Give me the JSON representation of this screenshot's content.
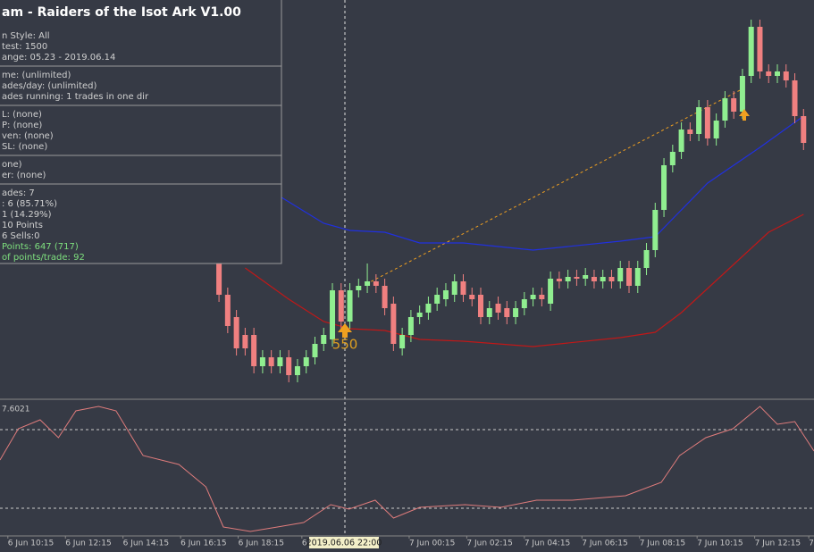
{
  "panel": {
    "title": "am - Raiders of the Isot Ark V1.00",
    "sections": [
      [
        "n Style:  All",
        " test: 1500",
        "ange: 05.23 - 2019.06.14"
      ],
      [
        "me: (unlimited)",
        "ades/day: (unlimited)",
        "ades running: 1 trades in one dir"
      ],
      [
        "L: (none)",
        "P: (none)",
        "ven: (none)",
        "SL: (none)"
      ],
      [
        "one)",
        "er: (none)"
      ],
      [
        "ades: 7",
        ": 6  (85.71%)",
        "1  (14.29%)",
        "10 Points",
        "6 Sells:0"
      ]
    ],
    "results": [
      "Points: 647 (717)",
      "of points/trade: 92"
    ]
  },
  "crosshair_label": "2019.06.06 22:00",
  "chart_data": [
    {
      "type": "candlestick",
      "annotation": "550",
      "up_color": "#90ee90",
      "down_color": "#f08080",
      "xlim": [
        -25.1,
        68.2
      ],
      "ylim": [
        0,
        450
      ],
      "xticks": [
        {
          "value": -24.2,
          "label": "6 Jun 10:15"
        },
        {
          "value": -17.6,
          "label": "6 Jun 12:15"
        },
        {
          "value": -11,
          "label": "6 Jun 14:15"
        },
        {
          "value": -4.4,
          "label": "6 Jun 16:15"
        },
        {
          "value": 2.2,
          "label": "6 Jun 18:15"
        },
        {
          "value": 9.5,
          "label": "6 J"
        },
        {
          "value": 21.8,
          "label": "7 Jun 00:15"
        },
        {
          "value": 28.4,
          "label": "7 Jun 02:15"
        },
        {
          "value": 35,
          "label": "7 Jun 04:15"
        },
        {
          "value": 41.6,
          "label": "7 Jun 06:15"
        },
        {
          "value": 48.2,
          "label": "7 Jun 08:15"
        },
        {
          "value": 54.8,
          "label": "7 Jun 10:15"
        },
        {
          "value": 61.4,
          "label": "7 Jun 12:15"
        },
        {
          "value": 67.6,
          "label": "7 Ju"
        }
      ],
      "open": [
        160,
        120,
        95,
        75,
        75,
        40,
        50,
        40,
        50,
        30,
        40,
        50,
        65,
        70,
        125,
        90,
        125,
        130,
        135,
        130,
        110,
        60,
        75,
        95,
        100,
        110,
        115,
        120,
        135,
        120,
        120,
        95,
        110,
        105,
        95,
        105,
        115,
        120,
        110,
        138,
        135,
        140,
        138,
        140,
        135,
        140,
        135,
        150,
        130,
        150,
        170,
        215,
        265,
        280,
        305,
        300,
        330,
        295,
        315,
        340,
        325,
        365,
        420,
        370,
        365,
        370,
        360,
        320
      ],
      "high": [
        168,
        128,
        103,
        83,
        83,
        58,
        58,
        58,
        58,
        48,
        58,
        73,
        83,
        133,
        133,
        133,
        138,
        155,
        143,
        138,
        118,
        83,
        103,
        108,
        118,
        128,
        133,
        143,
        143,
        128,
        128,
        113,
        118,
        113,
        113,
        123,
        128,
        128,
        146,
        146,
        148,
        148,
        150,
        148,
        148,
        148,
        158,
        158,
        158,
        178,
        223,
        273,
        288,
        313,
        313,
        338,
        338,
        323,
        348,
        348,
        373,
        428,
        428,
        378,
        378,
        378,
        368,
        328
      ],
      "low": [
        112,
        77,
        52,
        52,
        32,
        32,
        32,
        32,
        22,
        22,
        32,
        42,
        57,
        62,
        82,
        82,
        117,
        122,
        122,
        97,
        57,
        52,
        67,
        87,
        92,
        102,
        107,
        112,
        112,
        107,
        87,
        87,
        92,
        87,
        87,
        97,
        107,
        107,
        102,
        127,
        127,
        130,
        130,
        127,
        127,
        127,
        127,
        122,
        122,
        142,
        162,
        207,
        257,
        272,
        292,
        292,
        287,
        287,
        307,
        317,
        317,
        357,
        362,
        357,
        357,
        352,
        312,
        282
      ],
      "close": [
        120,
        85,
        60,
        60,
        40,
        50,
        40,
        50,
        30,
        40,
        50,
        65,
        75,
        125,
        90,
        125,
        130,
        135,
        130,
        105,
        65,
        75,
        95,
        100,
        110,
        120,
        125,
        135,
        120,
        115,
        95,
        105,
        100,
        95,
        105,
        115,
        120,
        115,
        138,
        135,
        140,
        138,
        142,
        135,
        140,
        135,
        150,
        130,
        150,
        170,
        215,
        265,
        280,
        305,
        300,
        330,
        295,
        315,
        340,
        325,
        365,
        420,
        370,
        365,
        370,
        360,
        320,
        290
      ],
      "series": [
        {
          "color": "#2030e0",
          "x": [
            7,
            12,
            15,
            19,
            23,
            28,
            36,
            46,
            50,
            52,
            56,
            62,
            67
          ],
          "values": [
            230,
            200,
            192,
            190,
            178,
            178,
            170,
            180,
            185,
            205,
            245,
            285,
            320
          ]
        },
        {
          "color": "#c01818",
          "x": [
            3,
            8,
            12,
            15,
            19,
            23,
            28,
            36,
            46,
            50,
            53,
            58,
            63,
            67
          ],
          "values": [
            150,
            115,
            90,
            82,
            80,
            70,
            68,
            62,
            72,
            78,
            100,
            145,
            190,
            210
          ]
        }
      ]
    },
    {
      "type": "line",
      "indicator_value": "7.6021",
      "color": "#e07c7c",
      "xlim": [
        -25.1,
        68.2
      ],
      "ylim": [
        0,
        150
      ],
      "levels": [
        119,
        31
      ],
      "x": [
        -25.1,
        -23,
        -20.5,
        -18.4,
        -16.4,
        -13.8,
        -11.8,
        -8.7,
        -4.6,
        -1.5,
        0.5,
        3.6,
        6.7,
        9.7,
        12.8,
        14.9,
        17.9,
        20,
        23,
        28.2,
        32.3,
        36.4,
        40.5,
        46.6,
        50.7,
        52.8,
        55.8,
        58.9,
        62,
        64,
        66,
        68.2
      ],
      "values": [
        85,
        120,
        130,
        110,
        140,
        145,
        140,
        90,
        80,
        55,
        10,
        5,
        10,
        15,
        35,
        30,
        40,
        20,
        32,
        35,
        32,
        40,
        40,
        45,
        60,
        90,
        110,
        120,
        145,
        125,
        128,
        95
      ]
    }
  ]
}
